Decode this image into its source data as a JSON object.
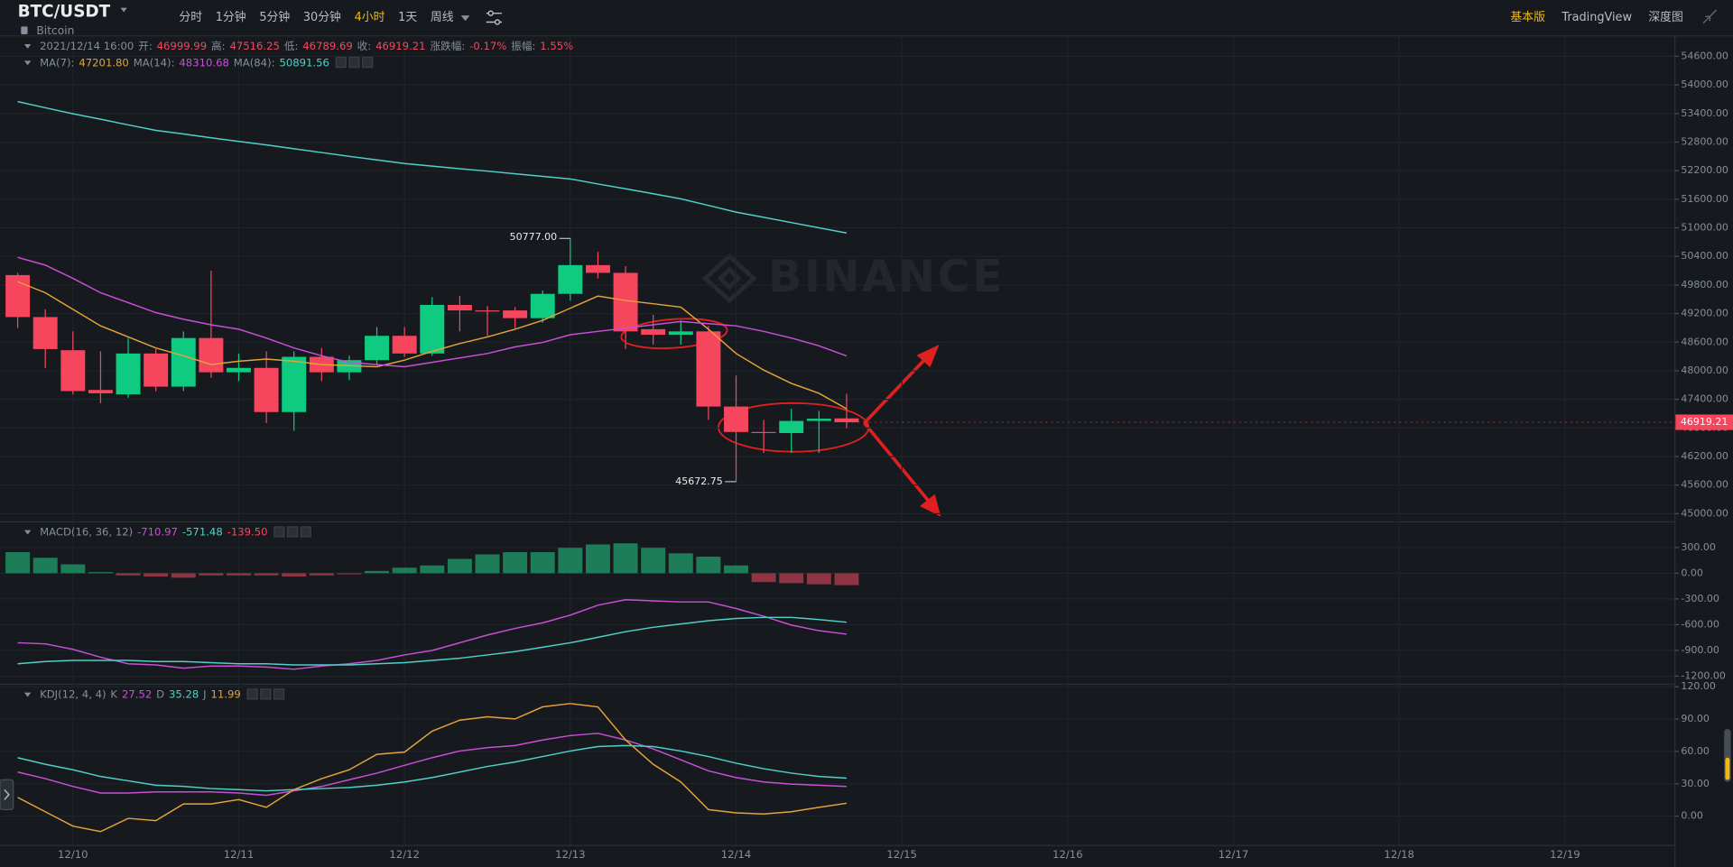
{
  "toolbar": {
    "symbol": "BTC/USDT",
    "name": "Bitcoin",
    "intervals": [
      "分时",
      "1分钟",
      "5分钟",
      "30分钟",
      "4小时",
      "1天",
      "周线"
    ],
    "active_interval": 4,
    "views": [
      "基本版",
      "TradingView",
      "深度图"
    ],
    "active_view": 0
  },
  "chart_data": [
    {
      "type": "candlestick",
      "info": {
        "time": "2021/12/14 16:00",
        "open_label": "开:",
        "high_label": "高:",
        "low_label": "低:",
        "close_label": "收:",
        "change_label": "涨跌幅:",
        "change": "-0.17%",
        "amplitude_label": "振幅:",
        "amplitude": "1.55%"
      },
      "open": [
        50008,
        49127,
        48431,
        47597,
        47504,
        48362,
        47666,
        48687,
        47968,
        48060,
        47133,
        48292,
        47968,
        48223,
        48733,
        48362,
        49382,
        49266,
        49266,
        49104,
        49614,
        50217,
        50055,
        48872,
        48756,
        48826,
        47249,
        46715,
        46692,
        46947,
        46999.99
      ],
      "high": [
        50055,
        49289,
        48826,
        48408,
        48687,
        48455,
        48826,
        50101,
        48362,
        48408,
        48408,
        48478,
        48315,
        48918,
        48918,
        49545,
        49568,
        49359,
        49336,
        49684,
        50777,
        50495,
        50194,
        49174,
        49058,
        48942,
        47898,
        46970,
        47202,
        47156,
        47516.25
      ],
      "low": [
        48895,
        48060,
        47504,
        47318,
        47434,
        47573,
        47573,
        47852,
        47782,
        46901,
        46739,
        47782,
        47805,
        48130,
        48292,
        48315,
        48826,
        48733,
        48895,
        49011,
        49475,
        49939,
        48455,
        48547,
        48547,
        46970,
        45672.75,
        46275,
        46275,
        46275,
        46789.69
      ],
      "close": [
        49127,
        48455,
        47573,
        47527,
        48362,
        47666,
        48687,
        47968,
        48060,
        47133,
        48292,
        47968,
        48223,
        48733,
        48362,
        49382,
        49266,
        49243,
        49104,
        49614,
        50217,
        50055,
        48826,
        48756,
        48826,
        47249,
        46715,
        46692,
        46947,
        46994,
        46919.21
      ],
      "up_color": "#0ecb81",
      "down_color": "#f6465d",
      "series": [
        {
          "name": "MA(7):",
          "color": "#e5a23b",
          "value_label": "47201.80",
          "values": [
            49869,
            49637,
            49289,
            48942,
            48710,
            48478,
            48315,
            48130,
            48200,
            48246,
            48200,
            48130,
            48107,
            48084,
            48223,
            48408,
            48571,
            48710,
            48872,
            49058,
            49313,
            49568,
            49475,
            49406,
            49336,
            48872,
            48362,
            48014,
            47736,
            47527,
            47201.8
          ]
        },
        {
          "name": "MA(14):",
          "color": "#c94fd6",
          "value_label": "48310.68",
          "values": [
            50379,
            50217,
            49939,
            49637,
            49429,
            49220,
            49081,
            48965,
            48872,
            48687,
            48478,
            48315,
            48176,
            48130,
            48084,
            48176,
            48269,
            48362,
            48501,
            48594,
            48756,
            48826,
            48895,
            48965,
            49034,
            48988,
            48942,
            48826,
            48687,
            48524,
            48310.68
          ]
        },
        {
          "name": "MA(84):",
          "color": "#4fd0c8",
          "value_label": "50891.56",
          "values": [
            53649,
            53520,
            53394,
            53280,
            53160,
            53046,
            52970,
            52890,
            52814,
            52740,
            52660,
            52580,
            52500,
            52425,
            52350,
            52295,
            52240,
            52190,
            52135,
            52080,
            52026,
            51920,
            51820,
            51715,
            51609,
            51470,
            51330,
            51220,
            51110,
            51000,
            50891.56
          ]
        }
      ],
      "high_label": "50777.00",
      "low_label": "45672.75",
      "watermark": "BINANCE",
      "ylim": [
        44840,
        55040
      ],
      "yticks": [
        {
          "value": 54600,
          "label": "54600.00"
        },
        {
          "value": 54000,
          "label": "54000.00"
        },
        {
          "value": 53400,
          "label": "53400.00"
        },
        {
          "value": 52800,
          "label": "52800.00"
        },
        {
          "value": 52200,
          "label": "52200.00"
        },
        {
          "value": 51600,
          "label": "51600.00"
        },
        {
          "value": 51000,
          "label": "51000.00"
        },
        {
          "value": 50400,
          "label": "50400.00"
        },
        {
          "value": 49800,
          "label": "49800.00"
        },
        {
          "value": 49200,
          "label": "49200.00"
        },
        {
          "value": 48600,
          "label": "48600.00"
        },
        {
          "value": 48000,
          "label": "48000.00"
        },
        {
          "value": 47400,
          "label": "47400.00"
        },
        {
          "value": 46800,
          "label": "46800.00"
        },
        {
          "value": 46200,
          "label": "46200.00"
        },
        {
          "value": 45600,
          "label": "45600.00"
        },
        {
          "value": 45000,
          "label": "45000.00"
        }
      ],
      "xticks": [
        "12/10",
        "12/11",
        "12/12",
        "12/13",
        "12/14",
        "12/15",
        "12/16",
        "12/17",
        "12/18",
        "12/19"
      ],
      "grid": true
    },
    {
      "type": "macd",
      "name": "MACD(16, 36, 12)",
      "series": [
        {
          "name": "DIF",
          "color": "#c94fd6",
          "value_label": "-710.97",
          "values": [
            -811,
            -824,
            -888,
            -979,
            -1056,
            -1069,
            -1107,
            -1082,
            -1082,
            -1094,
            -1120,
            -1082,
            -1056,
            -1017,
            -953,
            -901,
            -811,
            -721,
            -644,
            -579,
            -489,
            -373,
            -309,
            -322,
            -335,
            -335,
            -412,
            -502,
            -605,
            -670,
            -710.97
          ]
        },
        {
          "name": "DEA",
          "color": "#4fd0c8",
          "value_label": "-571.48",
          "values": [
            -1056,
            -1030,
            -1017,
            -1017,
            -1017,
            -1030,
            -1030,
            -1043,
            -1056,
            -1056,
            -1069,
            -1069,
            -1069,
            -1056,
            -1043,
            -1017,
            -991,
            -953,
            -914,
            -863,
            -811,
            -747,
            -682,
            -631,
            -592,
            -554,
            -528,
            -515,
            -515,
            -541,
            -571.48
          ]
        }
      ],
      "histogram": {
        "value_label": "-139.50",
        "up_color": "#1c7d58",
        "down_color": "#8d3543",
        "label_color": "#f6465d",
        "values": [
          245,
          180,
          103,
          13,
          -26,
          -39,
          -52,
          -26,
          -26,
          -26,
          -39,
          -26,
          -13,
          26,
          64,
          90,
          167,
          219,
          245,
          245,
          296,
          335,
          348,
          296,
          232,
          193,
          90,
          -103,
          -116,
          -129,
          -139.5
        ]
      },
      "ylim": [
        -1275,
        605
      ],
      "yticks": [
        {
          "value": 300,
          "label": "300.00"
        },
        {
          "value": 0,
          "label": "0.00"
        },
        {
          "value": -300,
          "label": "-300.00"
        },
        {
          "value": -600,
          "label": "-600.00"
        },
        {
          "value": -900,
          "label": "-900.00"
        },
        {
          "value": -1200,
          "label": "-1200.00"
        }
      ],
      "grid": true
    },
    {
      "type": "line",
      "name": "KDJ(12, 4, 4)",
      "series": [
        {
          "name": "K",
          "color": "#c94fd6",
          "value_label": "27.52",
          "values": [
            40.9,
            34.8,
            27.6,
            21.5,
            21.5,
            22.5,
            22.5,
            22.5,
            21.5,
            19.4,
            23.5,
            27.6,
            33.8,
            39.9,
            47.1,
            54.2,
            60.4,
            63.5,
            65.5,
            70.6,
            74.7,
            76.8,
            70.6,
            62.4,
            52.2,
            42,
            35.8,
            31.7,
            29.7,
            28.7,
            27.52
          ]
        },
        {
          "name": "D",
          "color": "#4fd0c8",
          "value_label": "35.28",
          "values": [
            54.2,
            48.1,
            43,
            36.8,
            32.8,
            28.7,
            27.6,
            25.6,
            24.6,
            23.5,
            24.6,
            25.6,
            26.6,
            28.7,
            31.7,
            35.8,
            40.9,
            46.1,
            50.2,
            55.3,
            60.4,
            64.5,
            65.5,
            64.5,
            60.4,
            55.3,
            49.1,
            44,
            39.9,
            36.8,
            35.28
          ]
        },
        {
          "name": "J",
          "color": "#e5a23b",
          "value_label": "11.99",
          "values": [
            17.4,
            4.1,
            -9.2,
            -14.3,
            -2,
            -4.1,
            11.3,
            11.3,
            15.4,
            8.2,
            24.6,
            34.8,
            43,
            57.3,
            59.4,
            78.8,
            89,
            92.1,
            90.1,
            101.3,
            104.4,
            101.3,
            70.6,
            48.1,
            31.7,
            6.1,
            3.1,
            2,
            4.1,
            8.2,
            11.99
          ]
        }
      ],
      "ylim": [
        -29.7,
        121.8
      ],
      "yticks": [
        {
          "value": 120,
          "label": "120.00"
        },
        {
          "value": 90,
          "label": "90.00"
        },
        {
          "value": 60,
          "label": "60.00"
        },
        {
          "value": 30,
          "label": "30.00"
        },
        {
          "value": 0,
          "label": "0.00"
        }
      ],
      "grid": true
    }
  ]
}
